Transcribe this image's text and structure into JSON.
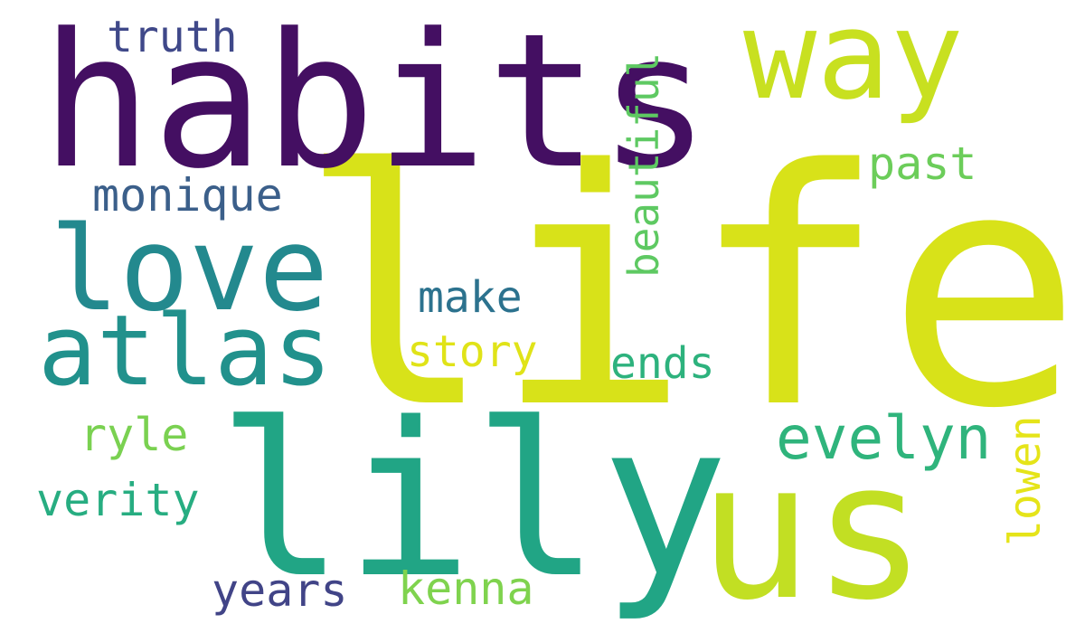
{
  "words": [
    {
      "text": "life",
      "color": "#d8e219"
    },
    {
      "text": "habits",
      "color": "#440f62"
    },
    {
      "text": "lily",
      "color": "#21a585"
    },
    {
      "text": "us",
      "color": "#c2df23"
    },
    {
      "text": "love",
      "color": "#23898e"
    },
    {
      "text": "atlas",
      "color": "#21918c"
    },
    {
      "text": "way",
      "color": "#c8e020"
    },
    {
      "text": "monique",
      "color": "#3b5f8a"
    },
    {
      "text": "truth",
      "color": "#3f4889"
    },
    {
      "text": "beautiful",
      "color": "#5ec962"
    },
    {
      "text": "past",
      "color": "#6ccd5a"
    },
    {
      "text": "make",
      "color": "#2c728e"
    },
    {
      "text": "story",
      "color": "#e0e318"
    },
    {
      "text": "ends",
      "color": "#2db27d"
    },
    {
      "text": "evelyn",
      "color": "#2fb47c"
    },
    {
      "text": "lowen",
      "color": "#e5e419"
    },
    {
      "text": "ryle",
      "color": "#7ad151"
    },
    {
      "text": "verity",
      "color": "#27ad81"
    },
    {
      "text": "years",
      "color": "#414487"
    },
    {
      "text": "kenna",
      "color": "#7fd34e"
    }
  ]
}
